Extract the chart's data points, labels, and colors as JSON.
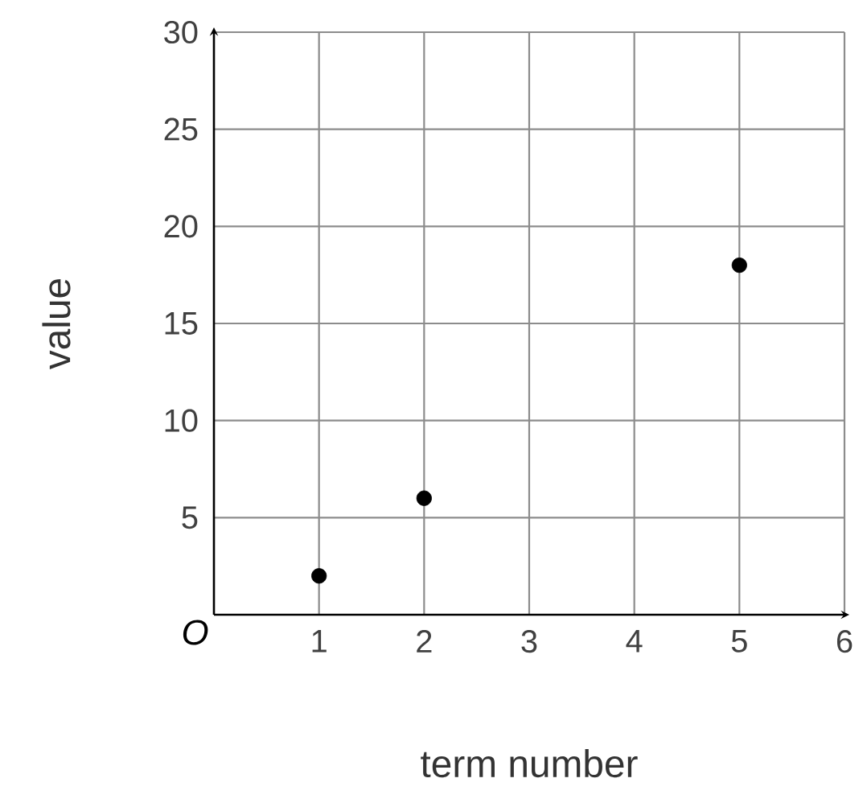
{
  "chart_data": {
    "type": "scatter",
    "xlabel": "term number",
    "ylabel": "value",
    "x": [
      1,
      2,
      5
    ],
    "values": [
      2,
      6,
      18
    ],
    "color": "#000000",
    "xlim": [
      0,
      6
    ],
    "ylim": [
      0,
      30
    ],
    "xticks": [
      1,
      2,
      3,
      4,
      5,
      6
    ],
    "yticks": [
      5,
      10,
      15,
      20,
      25,
      30
    ],
    "grid": true,
    "marker": "circle",
    "annotations": [
      "O"
    ]
  }
}
